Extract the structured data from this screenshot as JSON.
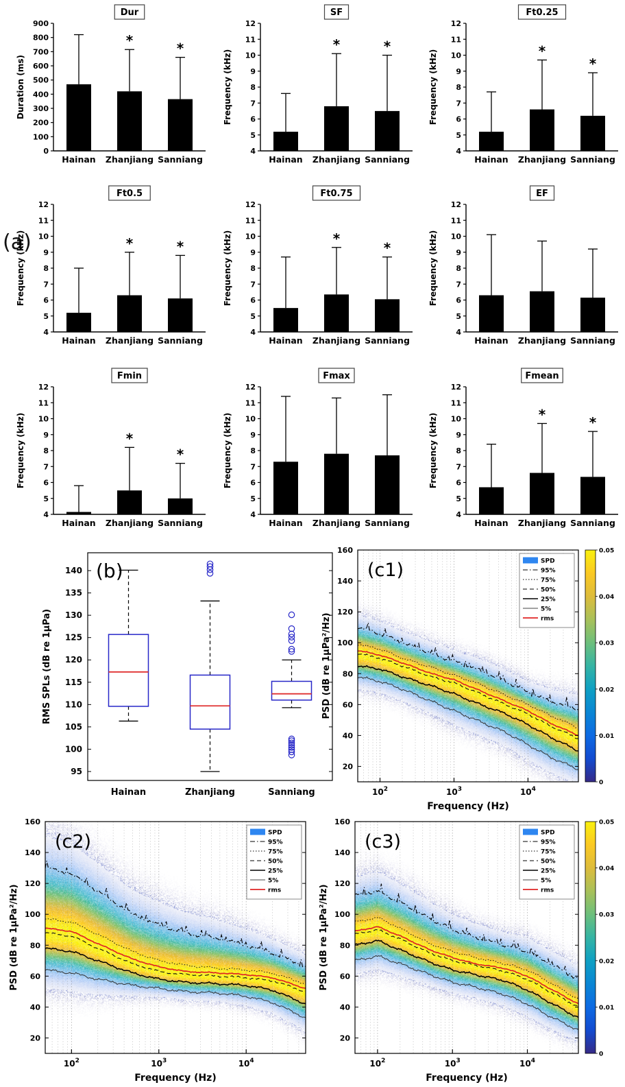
{
  "panels": {
    "a_label": "(a)",
    "b_label": "(b)",
    "c1_label": "(c1)",
    "c2_label": "(c2)",
    "c3_label": "(c3)"
  },
  "colors": {
    "spd_patch": "#2e86f0",
    "rms_line": "#e02525",
    "box_blue": "#2727c8",
    "median_red": "#e03030",
    "bar_fill": "#000000"
  },
  "chart_data": [
    {
      "id": "dur",
      "type": "bar",
      "title": "Dur",
      "ylabel": "Duration (ms)",
      "ylim": [
        0,
        900
      ],
      "ytick_step": 100,
      "categories": [
        "Hainan",
        "Zhanjiang",
        "Sanniang"
      ],
      "values": [
        470,
        420,
        365
      ],
      "err_top": [
        820,
        715,
        660
      ],
      "sig": [
        false,
        true,
        true
      ]
    },
    {
      "id": "sf",
      "type": "bar",
      "title": "SF",
      "ylabel": "Frequency (kHz)",
      "ylim": [
        4,
        12
      ],
      "ytick_step": 1,
      "categories": [
        "Hainan",
        "Zhanjiang",
        "Sanniang"
      ],
      "values": [
        5.2,
        6.8,
        6.5
      ],
      "err_top": [
        7.6,
        10.1,
        10.0
      ],
      "sig": [
        false,
        true,
        true
      ]
    },
    {
      "id": "ft025",
      "type": "bar",
      "title": "Ft0.25",
      "ylabel": "Frequency (kHz)",
      "ylim": [
        4,
        12
      ],
      "ytick_step": 1,
      "categories": [
        "Hainan",
        "Zhanjiang",
        "Sanniang"
      ],
      "values": [
        5.2,
        6.6,
        6.2
      ],
      "err_top": [
        7.7,
        9.7,
        8.9
      ],
      "sig": [
        false,
        true,
        true
      ]
    },
    {
      "id": "ft05",
      "type": "bar",
      "title": "Ft0.5",
      "ylabel": "Frequency (kHz)",
      "ylim": [
        4,
        12
      ],
      "ytick_step": 1,
      "categories": [
        "Hainan",
        "Zhanjiang",
        "Sanniang"
      ],
      "values": [
        5.2,
        6.3,
        6.1
      ],
      "err_top": [
        8.0,
        9.0,
        8.8
      ],
      "sig": [
        false,
        true,
        true
      ]
    },
    {
      "id": "ft075",
      "type": "bar",
      "title": "Ft0.75",
      "ylabel": "Frequency (kHz)",
      "ylim": [
        4,
        12
      ],
      "ytick_step": 1,
      "categories": [
        "Hainan",
        "Zhanjiang",
        "Sanniang"
      ],
      "values": [
        5.5,
        6.35,
        6.05
      ],
      "err_top": [
        8.7,
        9.3,
        8.7
      ],
      "sig": [
        false,
        true,
        true
      ]
    },
    {
      "id": "ef",
      "type": "bar",
      "title": "EF",
      "ylabel": "Frequency (kHz)",
      "ylim": [
        4,
        12
      ],
      "ytick_step": 1,
      "categories": [
        "Hainan",
        "Zhanjiang",
        "Sanniang"
      ],
      "values": [
        6.3,
        6.55,
        6.15
      ],
      "err_top": [
        10.1,
        9.7,
        9.2
      ],
      "sig": [
        false,
        false,
        false
      ]
    },
    {
      "id": "fmin",
      "type": "bar",
      "title": "Fmin",
      "ylabel": "Frequency (kHz)",
      "ylim": [
        4,
        12
      ],
      "ytick_step": 1,
      "categories": [
        "Hainan",
        "Zhanjiang",
        "Sanniang"
      ],
      "values": [
        4.15,
        5.5,
        5.0
      ],
      "err_top": [
        5.8,
        8.2,
        7.2
      ],
      "sig": [
        false,
        true,
        true
      ]
    },
    {
      "id": "fmax",
      "type": "bar",
      "title": "Fmax",
      "ylabel": "Frequency (kHz)",
      "ylim": [
        4,
        12
      ],
      "ytick_step": 1,
      "categories": [
        "Hainan",
        "Zhanjiang",
        "Sanniang"
      ],
      "values": [
        7.3,
        7.8,
        7.7
      ],
      "err_top": [
        11.4,
        11.3,
        11.5
      ],
      "sig": [
        false,
        false,
        false
      ]
    },
    {
      "id": "fmean",
      "type": "bar",
      "title": "Fmean",
      "ylabel": "Frequency (kHz)",
      "ylim": [
        4,
        12
      ],
      "ytick_step": 1,
      "categories": [
        "Hainan",
        "Zhanjiang",
        "Sanniang"
      ],
      "values": [
        5.7,
        6.6,
        6.35
      ],
      "err_top": [
        8.4,
        9.7,
        9.2
      ],
      "sig": [
        false,
        true,
        true
      ]
    },
    {
      "id": "b",
      "type": "box",
      "panel_label": "(b)",
      "ylabel": "RMS SPLs (dB re 1μPa)",
      "ylim": [
        93,
        144
      ],
      "yticks": [
        95,
        100,
        105,
        110,
        115,
        120,
        125,
        130,
        135,
        140
      ],
      "categories": [
        "Hainan",
        "Zhanjiang",
        "Sanniang"
      ],
      "boxes": [
        {
          "q1": 109.6,
          "median": 117.3,
          "q3": 125.7,
          "whisker_low": 106.3,
          "whisker_high": 140.1,
          "outliers": []
        },
        {
          "q1": 104.5,
          "median": 109.7,
          "q3": 116.6,
          "whisker_low": 95.0,
          "whisker_high": 133.2,
          "outliers": [
            139.4,
            140.2,
            140.9,
            141.5
          ]
        },
        {
          "q1": 111.0,
          "median": 112.4,
          "q3": 115.2,
          "whisker_low": 109.3,
          "whisker_high": 120.0,
          "outliers": [
            121.9,
            122.4,
            124.3,
            125.1,
            125.8,
            127.0,
            130.1,
            98.7,
            99.4,
            99.9,
            100.4,
            100.9,
            101.4,
            101.9,
            102.3
          ]
        }
      ]
    },
    {
      "id": "c1",
      "type": "psd",
      "panel_label": "(c1)",
      "xlabel": "Frequency (Hz)",
      "ylabel": "PSD (dB re 1μPa²/Hz)",
      "ylim": [
        10,
        160
      ],
      "yticks": [
        20,
        40,
        60,
        80,
        100,
        120,
        140,
        160
      ],
      "xlim": [
        50,
        48000
      ],
      "xticks": [
        100,
        1000,
        10000
      ],
      "freqs": [
        50,
        100,
        200,
        500,
        1000,
        2000,
        5000,
        10000,
        20000,
        48000
      ],
      "p95": [
        110,
        106,
        100,
        93,
        88,
        83,
        75,
        68,
        62,
        57
      ],
      "p75": [
        99,
        96,
        90,
        84,
        79,
        74,
        66,
        60,
        53,
        45
      ],
      "p50": [
        93,
        90,
        85,
        78,
        74,
        68,
        60,
        54,
        46,
        38
      ],
      "p25": [
        85,
        83,
        78,
        72,
        67,
        61,
        54,
        47,
        39,
        30
      ],
      "p5": [
        78,
        75,
        70,
        62,
        56,
        50,
        42,
        34,
        26,
        18
      ],
      "rms": [
        95,
        92,
        87,
        80,
        76,
        70,
        62,
        56,
        48,
        40
      ],
      "legend": [
        "SPD",
        "95%",
        "75%",
        "50%",
        "25%",
        "5%",
        "rms"
      ],
      "has_colorbar": true,
      "colorbar": {
        "ticks": [
          0,
          0.01,
          0.02,
          0.03,
          0.04,
          0.05
        ],
        "max": 0.05
      }
    },
    {
      "id": "c2",
      "type": "psd",
      "panel_label": "(c2)",
      "xlabel": "Frequency (Hz)",
      "ylabel": "PSD (dB re 1μPa²/Hz)",
      "ylim": [
        10,
        160
      ],
      "yticks": [
        20,
        40,
        60,
        80,
        100,
        120,
        140,
        160
      ],
      "xlim": [
        50,
        48000
      ],
      "xticks": [
        100,
        1000,
        10000
      ],
      "freqs": [
        50,
        100,
        200,
        500,
        1000,
        2000,
        5000,
        10000,
        20000,
        48000
      ],
      "p95": [
        130,
        126,
        115,
        100,
        93,
        88,
        84,
        80,
        75,
        66
      ],
      "p75": [
        97,
        95,
        87,
        76,
        70,
        67,
        65,
        64,
        62,
        55
      ],
      "p50": [
        88,
        86,
        78,
        68,
        63,
        61,
        60,
        59,
        57,
        50
      ],
      "p25": [
        78,
        76,
        70,
        62,
        58,
        56,
        55,
        54,
        51,
        42
      ],
      "p5": [
        64,
        62,
        58,
        54,
        52,
        50,
        49,
        47,
        43,
        33
      ],
      "rms": [
        91,
        89,
        81,
        71,
        66,
        63,
        62,
        61,
        59,
        52
      ],
      "legend": [
        "SPD",
        "95%",
        "75%",
        "50%",
        "25%",
        "5%",
        "rms"
      ],
      "has_colorbar": false,
      "colorbar": {
        "ticks": [
          0,
          0.01,
          0.02,
          0.03,
          0.04,
          0.05
        ],
        "max": 0.05
      }
    },
    {
      "id": "c3",
      "type": "psd",
      "panel_label": "(c3)",
      "xlabel": "Frequency (Hz)",
      "ylabel": "PSD (dB re 1μPa²/Hz)",
      "ylim": [
        10,
        160
      ],
      "yticks": [
        20,
        40,
        60,
        80,
        100,
        120,
        140,
        160
      ],
      "xlim": [
        50,
        48000
      ],
      "xticks": [
        100,
        1000,
        10000
      ],
      "freqs": [
        50,
        100,
        200,
        500,
        1000,
        2000,
        5000,
        10000,
        20000,
        48000
      ],
      "p95": [
        112,
        115,
        108,
        97,
        90,
        85,
        80,
        76,
        68,
        58
      ],
      "p75": [
        95,
        98,
        91,
        81,
        76,
        72,
        68,
        64,
        56,
        45
      ],
      "p50": [
        87,
        90,
        84,
        75,
        70,
        67,
        63,
        58,
        50,
        40
      ],
      "p25": [
        80,
        83,
        77,
        69,
        64,
        61,
        57,
        51,
        43,
        33
      ],
      "p5": [
        70,
        73,
        68,
        61,
        56,
        53,
        48,
        42,
        34,
        25
      ],
      "rms": [
        89,
        92,
        86,
        77,
        72,
        68,
        65,
        60,
        52,
        42
      ],
      "legend": [
        "SPD",
        "95%",
        "75%",
        "50%",
        "25%",
        "5%",
        "rms"
      ],
      "has_colorbar": true,
      "colorbar": {
        "ticks": [
          0,
          0.01,
          0.02,
          0.03,
          0.04,
          0.05
        ],
        "max": 0.05
      }
    }
  ]
}
